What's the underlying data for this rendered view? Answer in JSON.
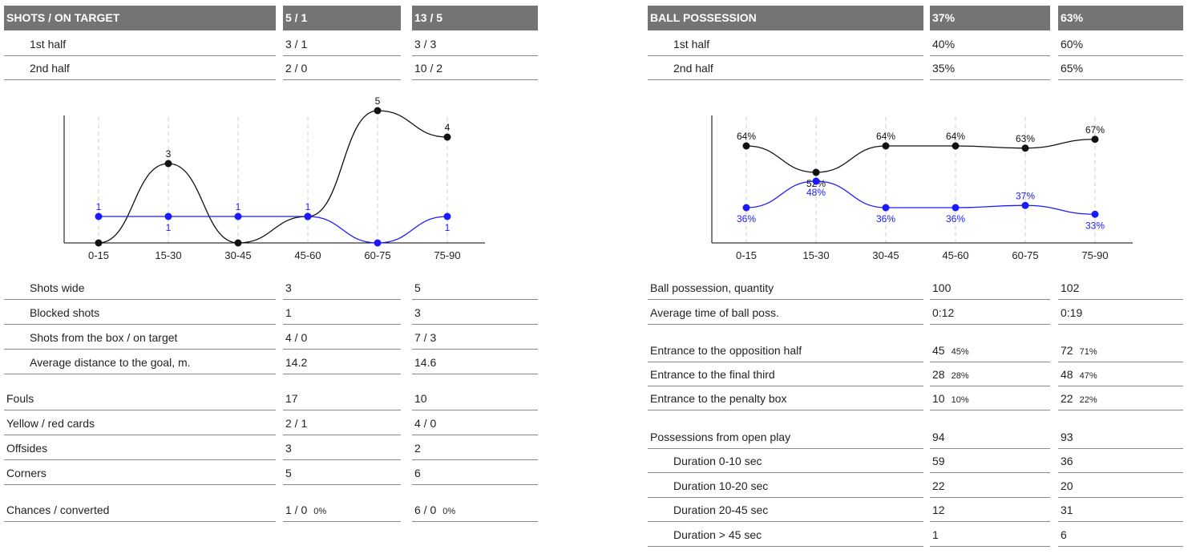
{
  "colors": {
    "header_bg": "#747474",
    "team1": "#111111",
    "team2": "#1a1aff"
  },
  "left": {
    "header": {
      "label": "SHOTS / ON TARGET",
      "team1": "5 / 1",
      "team2": "13 / 5"
    },
    "halves": [
      {
        "label": "1st half",
        "team1": "3 / 1",
        "team2": "3 / 3"
      },
      {
        "label": "2nd half",
        "team1": "2 / 0",
        "team2": "10 / 2"
      }
    ],
    "shot_rows": [
      {
        "label": "Shots wide",
        "team1": "3",
        "team2": "5"
      },
      {
        "label": "Blocked shots",
        "team1": "1",
        "team2": "3"
      },
      {
        "label": "Shots from the box / on target",
        "team1": "4 / 0",
        "team2": "7 / 3"
      },
      {
        "label": "Average distance to the goal, m.",
        "team1": "14.2",
        "team2": "14.6"
      }
    ],
    "misc_rows": [
      {
        "label": "Fouls",
        "team1": "17",
        "team2": "10"
      },
      {
        "label": "Yellow / red cards",
        "team1": "2 / 1",
        "team2": "4 / 0"
      },
      {
        "label": "Offsides",
        "team1": "3",
        "team2": "2"
      },
      {
        "label": "Corners",
        "team1": "5",
        "team2": "6"
      }
    ],
    "chances": {
      "label": "Chances / converted",
      "team1": "1 / 0",
      "team1_pct": "0%",
      "team2": "6 / 0",
      "team2_pct": "0%"
    }
  },
  "right": {
    "header": {
      "label": "BALL POSSESSION",
      "team1": "37%",
      "team2": "63%"
    },
    "halves": [
      {
        "label": "1st half",
        "team1": "40%",
        "team2": "60%"
      },
      {
        "label": "2nd half",
        "team1": "35%",
        "team2": "65%"
      }
    ],
    "poss_rows": [
      {
        "label": "Ball possession, quantity",
        "team1": "100",
        "team2": "102"
      },
      {
        "label": "Average time of ball poss.",
        "team1": "0:12",
        "team2": "0:19"
      }
    ],
    "entrance_rows": [
      {
        "label": "Entrance to the opposition half",
        "team1": "45",
        "team1_pct": "45%",
        "team2": "72",
        "team2_pct": "71%"
      },
      {
        "label": "Entrance to the final third",
        "team1": "28",
        "team1_pct": "28%",
        "team2": "48",
        "team2_pct": "47%"
      },
      {
        "label": "Entrance to the penalty box",
        "team1": "10",
        "team1_pct": "10%",
        "team2": "22",
        "team2_pct": "22%"
      }
    ],
    "open_play": {
      "label": "Possessions from open play",
      "team1": "94",
      "team2": "93"
    },
    "duration_rows": [
      {
        "label": "Duration  0-10 sec",
        "team1": "59",
        "team2": "36"
      },
      {
        "label": "Duration  10-20 sec",
        "team1": "22",
        "team2": "20"
      },
      {
        "label": "Duration  20-45 sec",
        "team1": "12",
        "team2": "31"
      },
      {
        "label": "Duration  > 45 sec",
        "team1": "1",
        "team2": "6"
      }
    ]
  },
  "chart_data": [
    {
      "type": "line",
      "categories": [
        "0-15",
        "15-30",
        "30-45",
        "45-60",
        "60-75",
        "75-90"
      ],
      "ylim": [
        0,
        5
      ],
      "series": [
        {
          "values": [
            0,
            3,
            0,
            1,
            5,
            4
          ],
          "labels": [
            "",
            "3",
            "",
            "",
            "5",
            "4"
          ],
          "color": "#111111"
        },
        {
          "values": [
            1,
            1,
            1,
            1,
            0,
            1
          ],
          "labels": [
            "1",
            "1",
            "1",
            "1",
            "",
            "1"
          ],
          "color": "#1a1aff"
        }
      ]
    },
    {
      "type": "line",
      "categories": [
        "0-15",
        "15-30",
        "30-45",
        "45-60",
        "60-75",
        "75-90"
      ],
      "ylim": [
        20,
        80
      ],
      "series": [
        {
          "values": [
            64,
            52,
            64,
            64,
            63,
            67
          ],
          "labels": [
            "64%",
            "52%",
            "64%",
            "64%",
            "63%",
            "67%"
          ],
          "color": "#111111"
        },
        {
          "values": [
            36,
            48,
            36,
            36,
            37,
            33
          ],
          "labels": [
            "36%",
            "48%",
            "36%",
            "36%",
            "37%",
            "33%"
          ],
          "color": "#1a1aff"
        }
      ]
    }
  ]
}
